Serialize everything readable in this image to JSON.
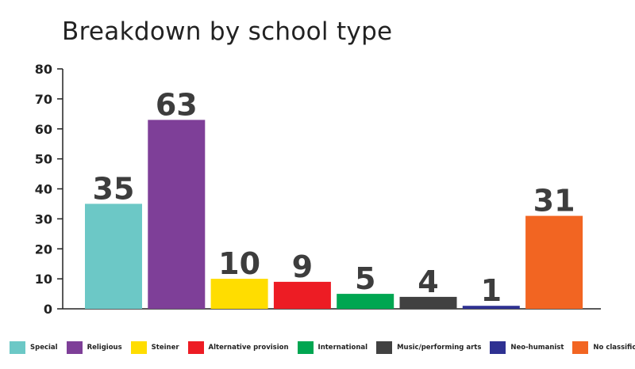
{
  "chart_data": {
    "type": "bar",
    "title": "Breakdown by school type",
    "xlabel": "",
    "ylabel": "",
    "ylim": [
      0,
      80
    ],
    "yticks": [
      0,
      10,
      20,
      30,
      40,
      50,
      60,
      70,
      80
    ],
    "grid": false,
    "legend_position": "bottom",
    "data_labels": true,
    "categories": [
      "Special",
      "Religious",
      "Steiner",
      "Alternative provision",
      "International",
      "Music/performing arts",
      "Neo-humanist",
      "No classification"
    ],
    "values": [
      35,
      63,
      10,
      9,
      5,
      4,
      1,
      31
    ],
    "colors": [
      "#6cc8c6",
      "#7e3f98",
      "#ffdd00",
      "#ed1c24",
      "#00a651",
      "#414141",
      "#2e3192",
      "#f26522"
    ]
  }
}
